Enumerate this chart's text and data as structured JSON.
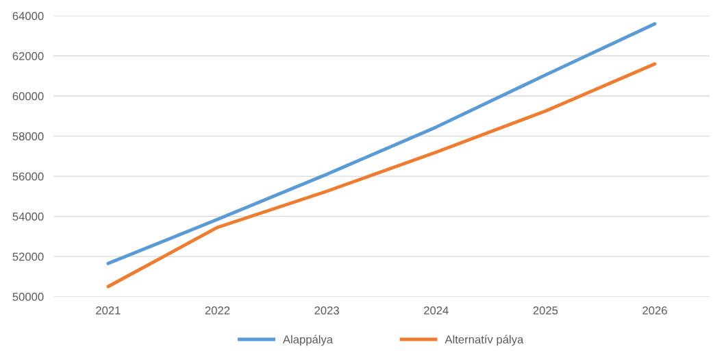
{
  "chart_data": {
    "type": "line",
    "categories": [
      "2021",
      "2022",
      "2023",
      "2024",
      "2025",
      "2026"
    ],
    "series": [
      {
        "name": "Alappálya",
        "color": "#5b9bd5",
        "values": [
          51650,
          53850,
          56100,
          58450,
          61050,
          63600
        ]
      },
      {
        "name": "Alternatív pálya",
        "color": "#ed7d31",
        "values": [
          50500,
          53450,
          55250,
          57200,
          59250,
          61600
        ]
      }
    ],
    "ylim": [
      50000,
      64000
    ],
    "yticks": [
      50000,
      52000,
      54000,
      56000,
      58000,
      60000,
      62000,
      64000
    ],
    "grid": "y",
    "legend": "bottom",
    "marker": "none",
    "line_style": "solid"
  }
}
